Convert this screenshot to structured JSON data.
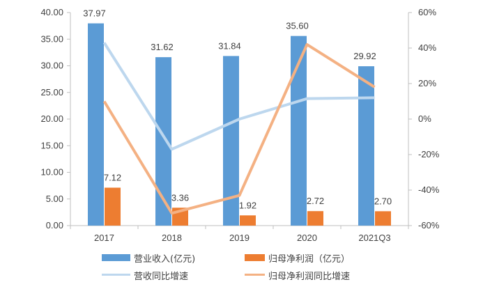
{
  "chart_data": {
    "type": "bar",
    "categories": [
      "2017",
      "2018",
      "2019",
      "2020",
      "2021Q3"
    ],
    "series": [
      {
        "name": "营业收入(亿元)",
        "kind": "bar",
        "axis": "left",
        "color": "#5b9bd5",
        "values": [
          37.97,
          31.62,
          31.84,
          35.6,
          29.92
        ],
        "labels": [
          "37.97",
          "31.62",
          "31.84",
          "35.60",
          "29.92"
        ]
      },
      {
        "name": "归母净利润（亿元）",
        "kind": "bar",
        "axis": "left",
        "color": "#ed7d31",
        "values": [
          7.12,
          3.36,
          1.92,
          2.72,
          2.7
        ],
        "labels": [
          "7.12",
          "3.36",
          "1.92",
          "2.72",
          "2.70"
        ]
      },
      {
        "name": "营收同比增速",
        "kind": "line",
        "axis": "right",
        "color": "#bdd7ee",
        "values": [
          0.43,
          -0.17,
          0.0,
          0.115,
          0.12
        ]
      },
      {
        "name": "归母净利润同比增速",
        "kind": "line",
        "axis": "right",
        "color": "#f4b183",
        "values": [
          0.1,
          -0.53,
          -0.43,
          0.42,
          0.18
        ]
      }
    ],
    "y_left": {
      "min": 0,
      "max": 40,
      "ticks": [
        "0.00",
        "5.00",
        "10.00",
        "15.00",
        "20.00",
        "25.00",
        "30.00",
        "35.00",
        "40.00"
      ]
    },
    "y_right": {
      "min": -0.6,
      "max": 0.6,
      "ticks": [
        "-60%",
        "-40%",
        "-20%",
        "0%",
        "20%",
        "40%",
        "60%"
      ]
    },
    "grid": false,
    "legend_position": "bottom"
  }
}
